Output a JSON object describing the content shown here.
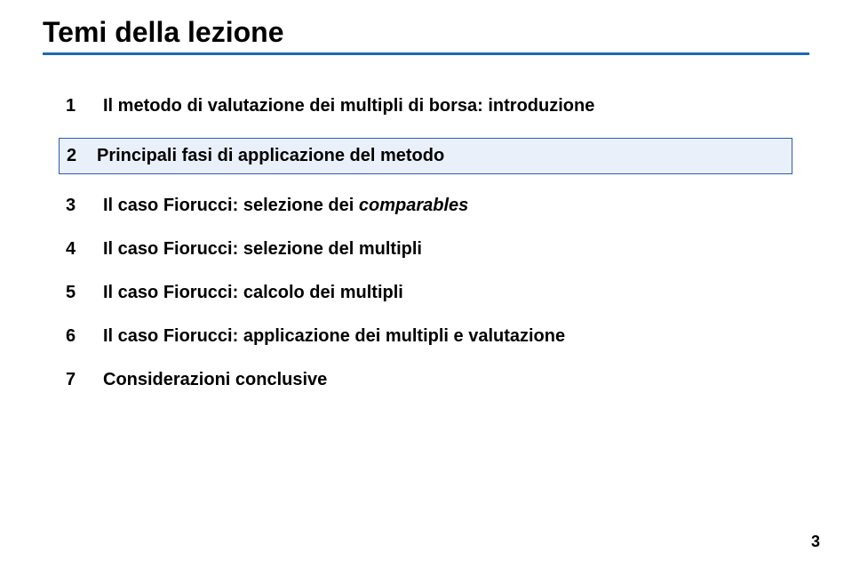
{
  "title": "Temi della lezione",
  "colors": {
    "underline": "#1f69b3",
    "highlight_bg": "#eaf0fa",
    "highlight_border": "#2a5bb5",
    "text": "#000000",
    "background": "#ffffff"
  },
  "typography": {
    "title_fontsize": 32,
    "title_weight": 700,
    "item_fontsize": 20,
    "item_weight": 700,
    "page_number_fontsize": 18
  },
  "items": [
    {
      "num": "1",
      "text": "Il metodo di valutazione dei multipli di borsa: introduzione",
      "highlighted": false
    },
    {
      "num": "2",
      "text": "Principali fasi di applicazione del metodo",
      "highlighted": true
    },
    {
      "num": "3",
      "text_prefix": "Il caso Fiorucci: selezione dei ",
      "text_italic": "comparables",
      "highlighted": false
    },
    {
      "num": "4",
      "text": "Il caso Fiorucci: selezione del multipli",
      "highlighted": false
    },
    {
      "num": "5",
      "text": "Il caso Fiorucci: calcolo dei multipli",
      "highlighted": false
    },
    {
      "num": "6",
      "text": "Il caso Fiorucci: applicazione dei multipli e valutazione",
      "highlighted": false
    },
    {
      "num": "7",
      "text": "Considerazioni conclusive",
      "highlighted": false
    }
  ],
  "page_number": "3"
}
